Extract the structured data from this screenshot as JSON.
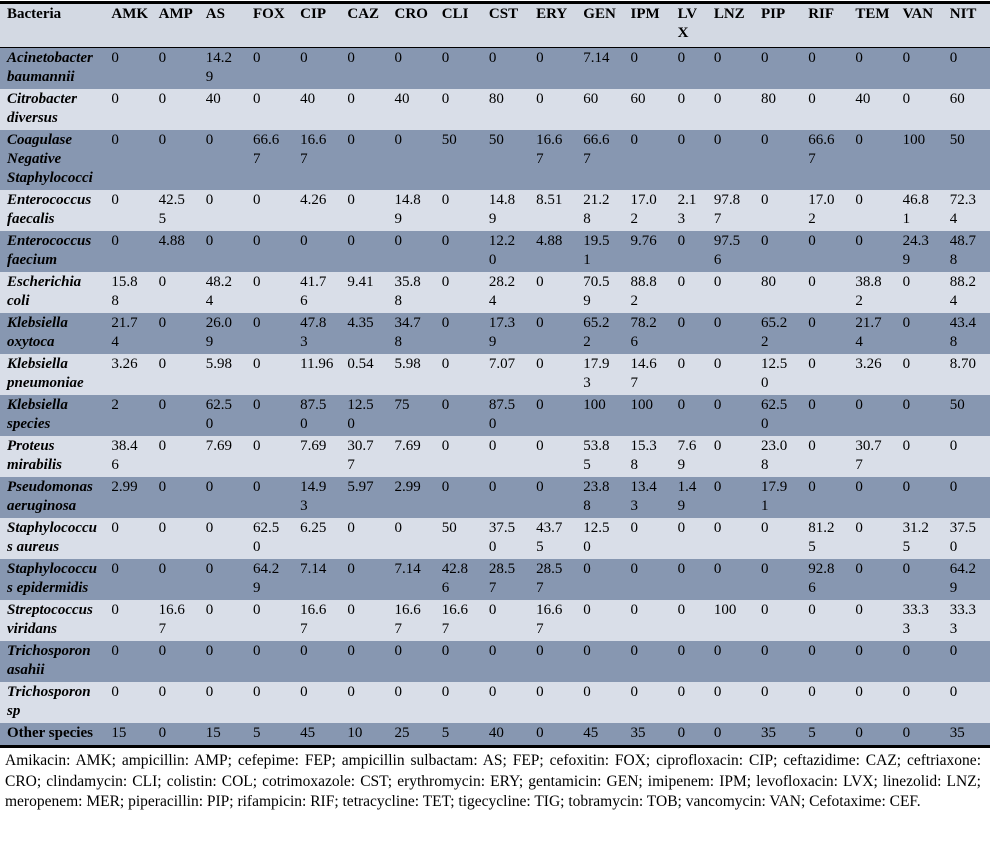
{
  "table": {
    "header": {
      "bacteria_label": "Bacteria",
      "antibiotic_columns": [
        "AMK",
        "AMP",
        "AS",
        "FOX",
        "CIP",
        "CAZ",
        "CRO",
        "CLI",
        "CST",
        "ERY",
        "GEN",
        "IPM",
        "LVX",
        "LNZ",
        "PIP",
        "RIF",
        "TEM",
        "VAN",
        "NIT"
      ]
    },
    "rows": [
      {
        "bacteria": "Acinetobacter baumannii",
        "italic": true,
        "values": [
          "0",
          "0",
          "14.29",
          "0",
          "0",
          "0",
          "0",
          "0",
          "0",
          "0",
          "7.14",
          "0",
          "0",
          "0",
          "0",
          "0",
          "0",
          "0",
          "0"
        ]
      },
      {
        "bacteria": "Citrobacter diversus",
        "italic": true,
        "values": [
          "0",
          "0",
          "40",
          "0",
          "40",
          "0",
          "40",
          "0",
          "80",
          "0",
          "60",
          "60",
          "0",
          "0",
          "80",
          "0",
          "40",
          "0",
          "60"
        ]
      },
      {
        "bacteria": "Coagulase Negative Staphylococci",
        "italic": true,
        "values": [
          "0",
          "0",
          "0",
          "66.67",
          "16.67",
          "0",
          "0",
          "50",
          "50",
          "16.67",
          "66.67",
          "0",
          "0",
          "0",
          "0",
          "66.67",
          "0",
          "100",
          "50"
        ]
      },
      {
        "bacteria": "Enterococcus faecalis",
        "italic": true,
        "values": [
          "0",
          "42.55",
          "0",
          "0",
          "4.26",
          "0",
          "14.89",
          "0",
          "14.89",
          "8.51",
          "21.28",
          "17.02",
          "2.13",
          "97.87",
          "0",
          "17.02",
          "0",
          "46.81",
          "72.34"
        ]
      },
      {
        "bacteria": "Enterococcus faecium",
        "italic": true,
        "values": [
          "0",
          "4.88",
          "0",
          "0",
          "0",
          "0",
          "0",
          "0",
          "12.20",
          "4.88",
          "19.51",
          "9.76",
          "0",
          "97.56",
          "0",
          "0",
          "0",
          "24.39",
          "48.78"
        ]
      },
      {
        "bacteria": "Escherichia coli",
        "italic": true,
        "values": [
          "15.88",
          "0",
          "48.24",
          "0",
          "41.76",
          "9.41",
          "35.88",
          "0",
          "28.24",
          "0",
          "70.59",
          "88.82",
          "0",
          "0",
          "80",
          "0",
          "38.82",
          "0",
          "88.24"
        ]
      },
      {
        "bacteria": "Klebsiella oxytoca",
        "italic": true,
        "values": [
          "21.74",
          "0",
          "26.09",
          "0",
          "47.83",
          "4.35",
          "34.78",
          "0",
          "17.39",
          "0",
          "65.22",
          "78.26",
          "0",
          "0",
          "65.22",
          "0",
          "21.74",
          "0",
          "43.48"
        ]
      },
      {
        "bacteria": "Klebsiella pneumoniae",
        "italic": true,
        "values": [
          "3.26",
          "0",
          "5.98",
          "0",
          "11.96",
          "0.54",
          "5.98",
          "0",
          "7.07",
          "0",
          "17.93",
          "14.67",
          "0",
          "0",
          "12.50",
          "0",
          "3.26",
          "0",
          "8.70"
        ]
      },
      {
        "bacteria": "Klebsiella species",
        "italic": true,
        "values": [
          "2",
          "0",
          "62.50",
          "0",
          "87.50",
          "12.50",
          "75",
          "0",
          "87.50",
          "0",
          "100",
          "100",
          "0",
          "0",
          "62.50",
          "0",
          "0",
          "0",
          "50"
        ]
      },
      {
        "bacteria": "Proteus mirabilis",
        "italic": true,
        "values": [
          "38.46",
          "0",
          "7.69",
          "0",
          "7.69",
          "30.77",
          "7.69",
          "0",
          "0",
          "0",
          "53.85",
          "15.38",
          "7.69",
          "0",
          "23.08",
          "0",
          "30.77",
          "0",
          "0"
        ]
      },
      {
        "bacteria": "Pseudomonas aeruginosa",
        "italic": true,
        "values": [
          "2.99",
          "0",
          "0",
          "0",
          "14.93",
          "5.97",
          "2.99",
          "0",
          "0",
          "0",
          "23.88",
          "13.43",
          "1.49",
          "0",
          "17.91",
          "0",
          "0",
          "0",
          "0"
        ]
      },
      {
        "bacteria": "Staphylococcus aureus",
        "italic": true,
        "values": [
          "0",
          "0",
          "0",
          "62.50",
          "6.25",
          "0",
          "0",
          "50",
          "37.50",
          "43.75",
          "12.50",
          "0",
          "0",
          "0",
          "0",
          "81.25",
          "0",
          "31.25",
          "37.50"
        ]
      },
      {
        "bacteria": "Staphylococcus epidermidis",
        "italic": true,
        "values": [
          "0",
          "0",
          "0",
          "64.29",
          "7.14",
          "0",
          "7.14",
          "42.86",
          "28.57",
          "28.57",
          "0",
          "0",
          "0",
          "0",
          "0",
          "92.86",
          "0",
          "0",
          "64.29"
        ]
      },
      {
        "bacteria": "Streptococcus viridans",
        "italic": true,
        "values": [
          "0",
          "16.67",
          "0",
          "0",
          "16.67",
          "0",
          "16.67",
          "16.67",
          "0",
          "16.67",
          "0",
          "0",
          "0",
          "100",
          "0",
          "0",
          "0",
          "33.33",
          "33.33"
        ]
      },
      {
        "bacteria": "Trichosporon asahii",
        "italic": true,
        "values": [
          "0",
          "0",
          "0",
          "0",
          "0",
          "0",
          "0",
          "0",
          "0",
          "0",
          "0",
          "0",
          "0",
          "0",
          "0",
          "0",
          "0",
          "0",
          "0"
        ]
      },
      {
        "bacteria": "Trichosporon sp",
        "italic": true,
        "values": [
          "0",
          "0",
          "0",
          "0",
          "0",
          "0",
          "0",
          "0",
          "0",
          "0",
          "0",
          "0",
          "0",
          "0",
          "0",
          "0",
          "0",
          "0",
          "0"
        ]
      },
      {
        "bacteria": "Other species",
        "italic": false,
        "values": [
          "15",
          "0",
          "15",
          "5",
          "45",
          "10",
          "25",
          "5",
          "40",
          "0",
          "45",
          "35",
          "0",
          "0",
          "35",
          "5",
          "0",
          "0",
          "35"
        ]
      }
    ]
  },
  "footnote": "Amikacin: AMK; ampicillin: AMP; cefepime: FEP; ampicillin sulbactam: AS; FEP; cefoxitin: FOX; ciprofloxacin: CIP; ceftazidime: CAZ; ceftriaxone: CRO; clindamycin: CLI; colistin: COL; cotrimoxazole: CST; erythromycin: ERY; gentamicin: GEN; imipenem: IPM; levofloxacin: LVX; linezolid: LNZ; meropenem: MER; piperacillin: PIP; rifampicin: RIF; tetracycline: TET; tigecycline: TIG; tobramycin: TOB; vancomycin: VAN; Cefotaxime: CEF.",
  "colors": {
    "band_dark": "#8797b1",
    "band_light": "#d9dee8",
    "header_bg": "#d3d9e3",
    "border": "#000000"
  }
}
